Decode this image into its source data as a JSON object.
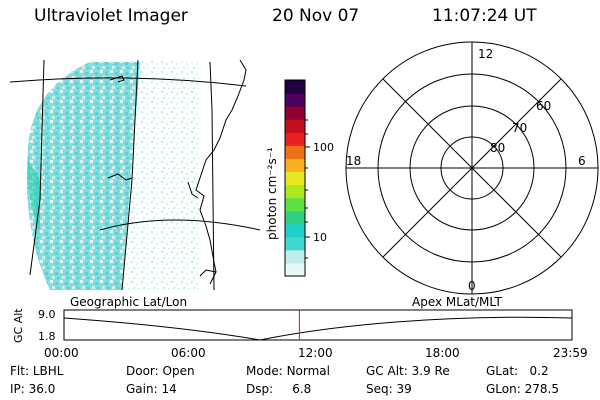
{
  "header": {
    "instrument": "Ultraviolet Imager",
    "date": "20 Nov 07",
    "time": "11:07:24 UT"
  },
  "colorbar": {
    "unit_label": "photon cm⁻²s⁻¹",
    "ticks": [
      "100",
      "10"
    ],
    "colors": [
      "#e8f7f7",
      "#c0ecec",
      "#40d8d0",
      "#20d0c8",
      "#30d080",
      "#60e040",
      "#b0e820",
      "#e8e820",
      "#f8b020",
      "#f07018",
      "#e82020",
      "#c01020",
      "#900030",
      "#500060",
      "#200040"
    ]
  },
  "polar": {
    "mlt_labels": [
      "12",
      "18",
      "6",
      "0"
    ],
    "mlat_labels": [
      "60",
      "70",
      "80"
    ]
  },
  "timeline": {
    "left_caption": "Geographic Lat/Lon",
    "right_caption": "Apex  MLat/MLT",
    "y_axis_label": "GC Alt",
    "y_ticks": [
      "9.0",
      "1.8"
    ],
    "x_ticks": [
      "00:00",
      "06:00",
      "12:00",
      "18:00",
      "23:59"
    ],
    "current_time_hours": 11.12,
    "marker_color": "#ff0000"
  },
  "footer": {
    "row1": [
      {
        "label": "Flt:",
        "value": "LBHL"
      },
      {
        "label": "Door:",
        "value": "Open"
      },
      {
        "label": "Mode:",
        "value": "Normal"
      },
      {
        "label": "GC Alt:",
        "value": "3.9 Re"
      },
      {
        "label": "GLat:",
        "value": "0.2"
      }
    ],
    "row2": [
      {
        "label": "IP:",
        "value": "36.0"
      },
      {
        "label": "Gain:",
        "value": "14"
      },
      {
        "label": "Dsp:",
        "value": "6.8"
      },
      {
        "label": "Seq:",
        "value": "39"
      },
      {
        "label": "GLon:",
        "value": "278.5"
      }
    ]
  }
}
